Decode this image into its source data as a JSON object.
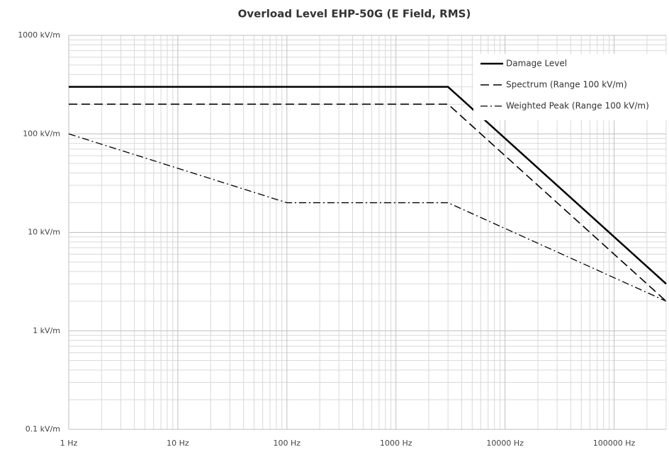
{
  "chart_data": {
    "type": "line",
    "title": "Overload Level EHP-50G (E Field, RMS)",
    "xscale": "log",
    "yscale": "log",
    "grid": true,
    "minor_grid": true,
    "legend": "upper right",
    "xlim": [
      1,
      300000
    ],
    "ylim": [
      0.1,
      1000
    ],
    "xticks": [
      {
        "value": 1,
        "label": "1 Hz"
      },
      {
        "value": 10,
        "label": "10 Hz"
      },
      {
        "value": 100,
        "label": "100 Hz"
      },
      {
        "value": 1000,
        "label": "1000 Hz"
      },
      {
        "value": 10000,
        "label": "10000 Hz"
      },
      {
        "value": 100000,
        "label": "100000 Hz"
      }
    ],
    "yticks": [
      {
        "value": 0.1,
        "label": "0.1 kV/m"
      },
      {
        "value": 1,
        "label": "1 kV/m"
      },
      {
        "value": 10,
        "label": "10 kV/m"
      },
      {
        "value": 100,
        "label": "100 kV/m"
      },
      {
        "value": 1000,
        "label": "1000 kV/m"
      }
    ],
    "series": [
      {
        "name": "Damage Level",
        "color": "#000000",
        "dash": "solid",
        "x": [
          1,
          3000,
          300000
        ],
        "values": [
          300,
          300,
          3
        ]
      },
      {
        "name": "Spectrum (Range 100 kV/m)",
        "color": "#000000",
        "dash": "dashed",
        "x": [
          1,
          3000,
          300000
        ],
        "values": [
          200,
          200,
          2
        ]
      },
      {
        "name": "Weighted Peak (Range 100 kV/m)",
        "color": "#000000",
        "dash": "dashdot",
        "x": [
          1,
          100,
          3000,
          300000
        ],
        "values": [
          100,
          20,
          20,
          2
        ]
      }
    ]
  }
}
